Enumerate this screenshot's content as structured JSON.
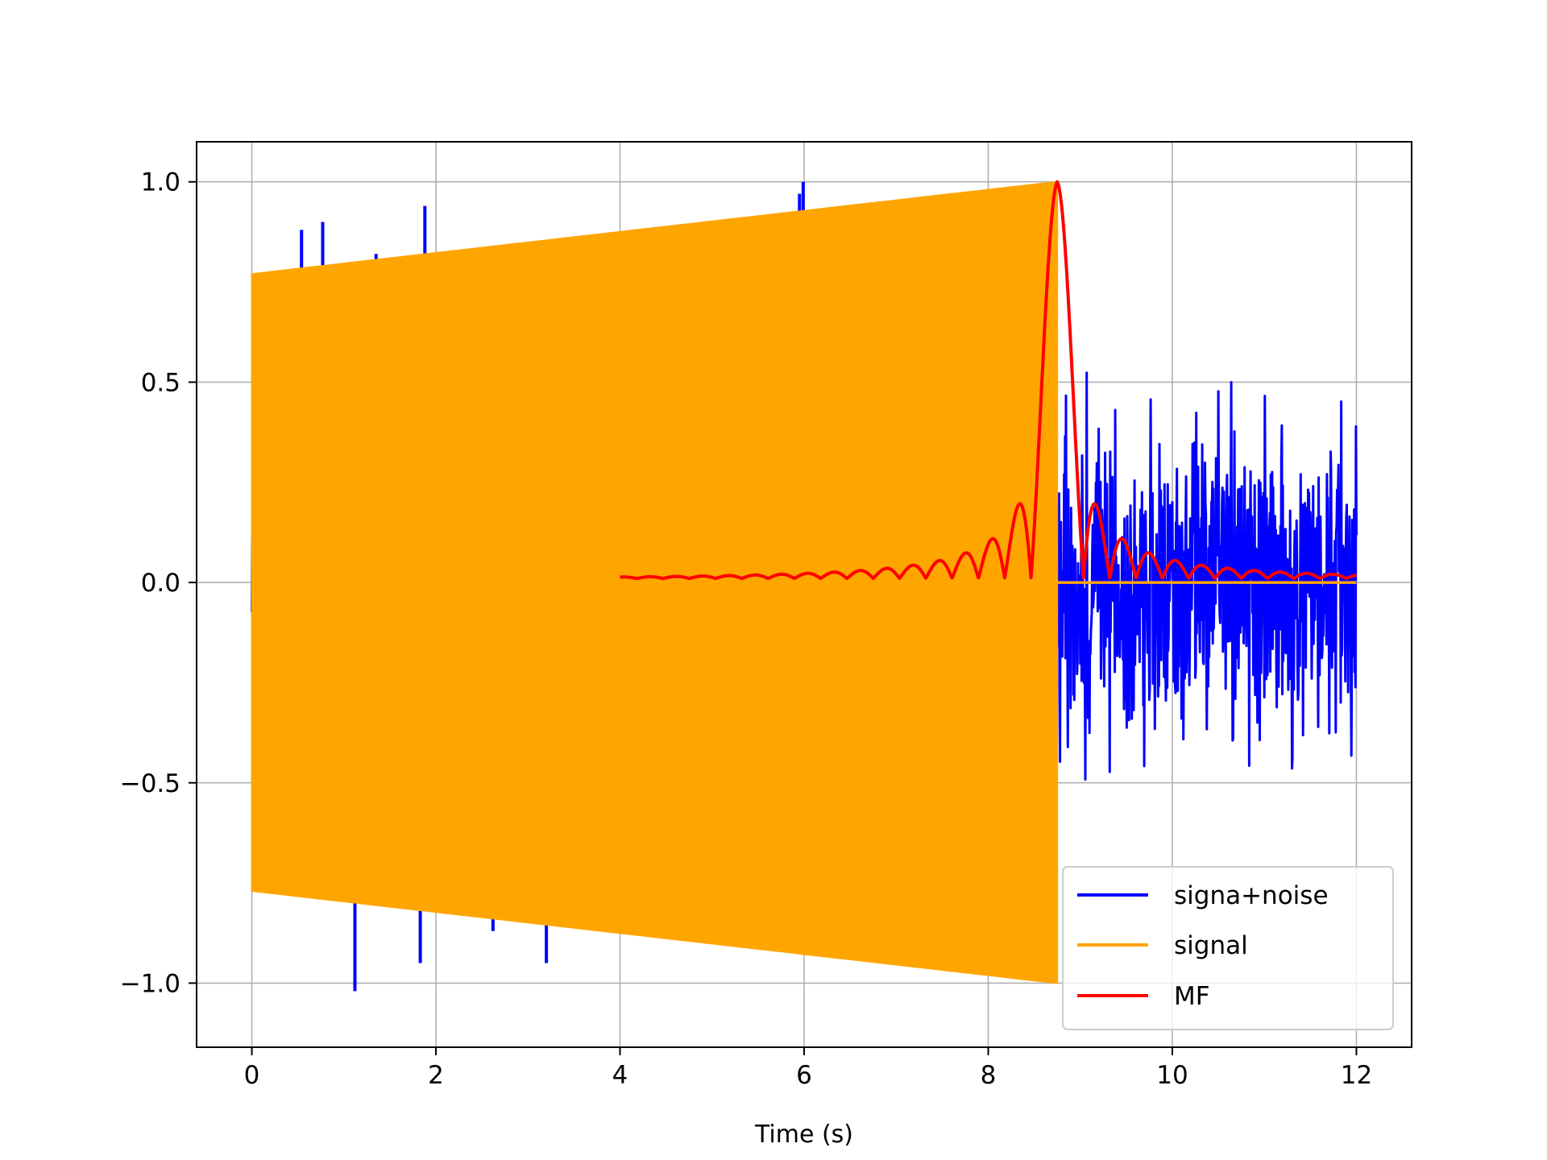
{
  "chart_data": {
    "type": "line",
    "xlabel": "Time (s)",
    "ylabel": "",
    "title": "",
    "xlim": [
      -0.6,
      12.6
    ],
    "ylim": [
      -1.16,
      1.1
    ],
    "xticks": [
      0,
      2,
      4,
      6,
      8,
      10,
      12
    ],
    "xtick_labels": [
      "0",
      "2",
      "4",
      "6",
      "8",
      "10",
      "12"
    ],
    "yticks": [
      -1.0,
      -0.5,
      0.0,
      0.5,
      1.0
    ],
    "ytick_labels": [
      "−1.0",
      "−0.5",
      "0.0",
      "0.5",
      "1.0"
    ],
    "grid": true,
    "legend_position": "lower-right",
    "series": [
      {
        "name": "signa+noise",
        "color": "#0000ff",
        "t_start": 0,
        "t_end": 12,
        "noise_amplitude": 0.6,
        "spikes": [
          {
            "x": 0.54,
            "y": 0.88
          },
          {
            "x": 0.77,
            "y": 0.9
          },
          {
            "x": 1.35,
            "y": 0.82
          },
          {
            "x": 1.88,
            "y": 0.94
          },
          {
            "x": 5.95,
            "y": 0.97
          },
          {
            "x": 5.99,
            "y": 1.0
          },
          {
            "x": 1.12,
            "y": -1.02
          },
          {
            "x": 1.83,
            "y": -0.95
          },
          {
            "x": 2.5,
            "y": -0.83
          },
          {
            "x": 2.62,
            "y": -0.87
          },
          {
            "x": 3.1,
            "y": -0.85
          },
          {
            "x": 3.2,
            "y": -0.95
          },
          {
            "x": 3.5,
            "y": -0.83
          }
        ]
      },
      {
        "name": "signal",
        "color": "#ffa500",
        "t_start": 0,
        "t_end": 8.75,
        "amplitude_start": 0.77,
        "amplitude_end": 1.0,
        "zero_after_end": true
      },
      {
        "name": "MF",
        "color": "#ff0000",
        "t_start": 4,
        "t_end": 12,
        "peak_x": 8.75,
        "peak_y": 1.0,
        "baseline": 0.01
      }
    ]
  }
}
